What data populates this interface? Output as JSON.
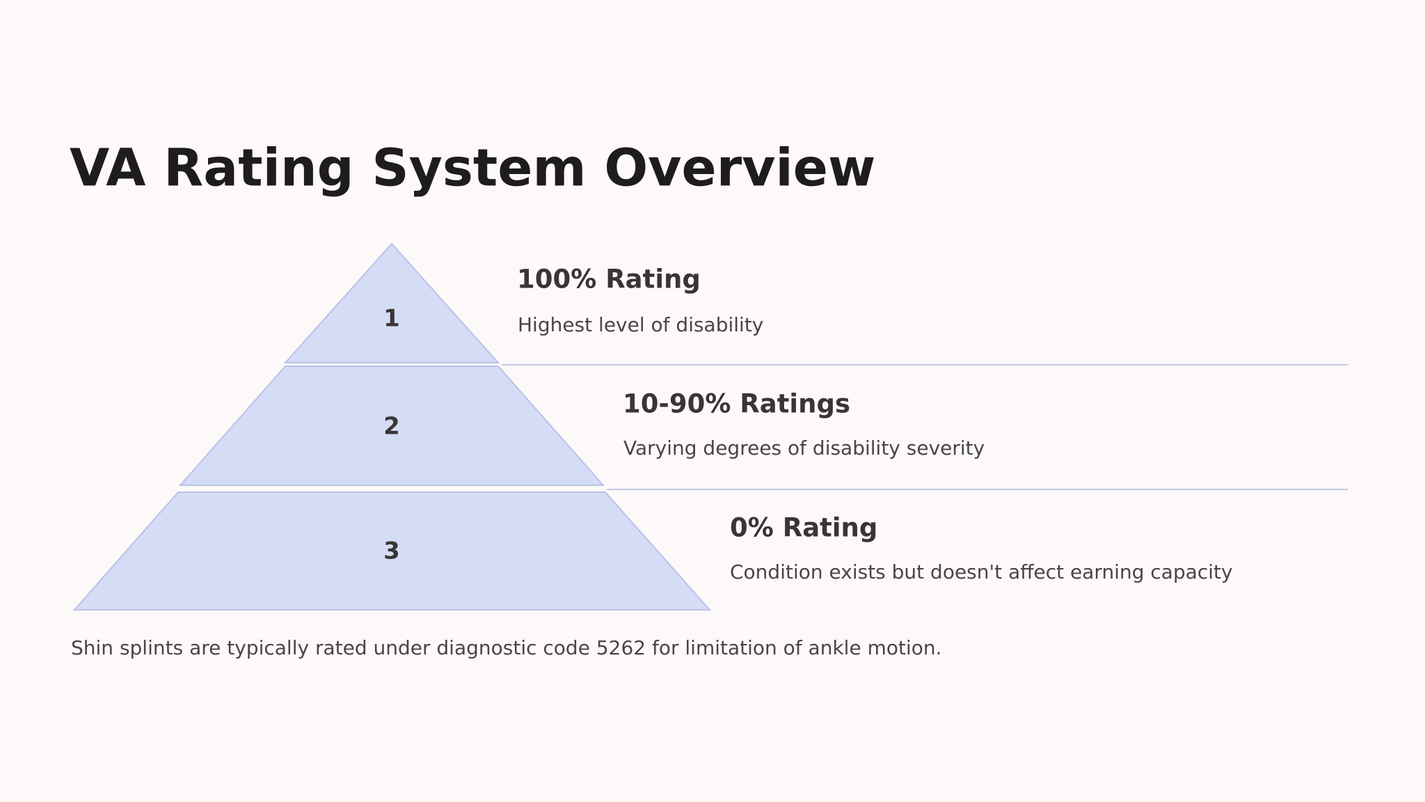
{
  "title": "VA Rating System Overview",
  "tiers": [
    {
      "number": "1",
      "heading": "100% Rating",
      "description": "Highest level of disability"
    },
    {
      "number": "2",
      "heading": "10-90% Ratings",
      "description": "Varying degrees of disability severity"
    },
    {
      "number": "3",
      "heading": "0% Rating",
      "description": "Condition exists but doesn't affect earning capacity"
    }
  ],
  "footnote": "Shin splints are typically rated under diagnostic code 5262 for limitation of ankle motion."
}
